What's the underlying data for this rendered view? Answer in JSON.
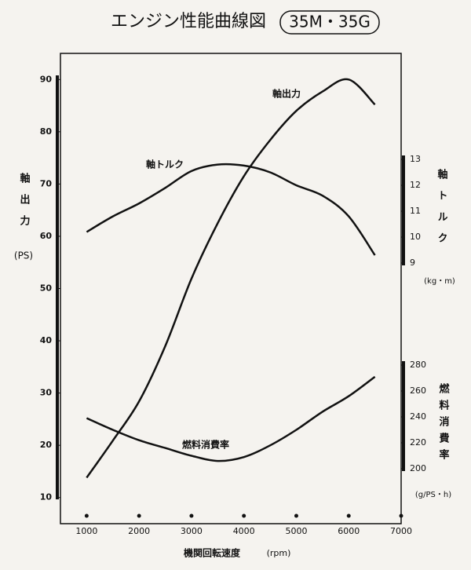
{
  "chart_data": {
    "type": "line",
    "title": "エンジン性能曲線図",
    "subtitle": "35M・35G",
    "x_label": "機関回転速度",
    "x_unit": "(rpm)",
    "y_label": "軸出力",
    "y_unit": "(PS)",
    "y2_label": "軸トルク",
    "y2_unit": "(kg・m)",
    "y3_label": "燃料消費率",
    "y3_unit": "(g/PS・h)",
    "x": [
      1000,
      1500,
      2000,
      2500,
      3000,
      3500,
      4000,
      4500,
      5000,
      5500,
      6000,
      6500
    ],
    "xlim": [
      500,
      7000
    ],
    "xticks": [
      1000,
      2000,
      3000,
      4000,
      5000,
      6000,
      7000
    ],
    "ylim": [
      5,
      95
    ],
    "yticks": [
      10,
      20,
      30,
      40,
      50,
      60,
      70,
      80,
      90
    ],
    "y2lim": [
      9,
      13
    ],
    "y2ticks": [
      9,
      10,
      11,
      12,
      13
    ],
    "y3lim": [
      200,
      280
    ],
    "y3ticks": [
      200,
      220,
      240,
      260,
      280
    ],
    "series": [
      {
        "name": "軸出力",
        "color": "#111111",
        "axis": "y",
        "values": [
          13.8,
          20.9,
          28.4,
          39,
          51.9,
          62.5,
          71.5,
          78.4,
          84,
          87.7,
          90,
          85.2
        ]
      },
      {
        "name": "軸トルク",
        "color": "#111111",
        "axis": "y2",
        "values": [
          10.2,
          10.8,
          11.3,
          11.9,
          12.55,
          12.8,
          12.76,
          12.5,
          12.0,
          11.6,
          10.8,
          9.3
        ]
      },
      {
        "name": "燃料消費率",
        "color": "#111111",
        "axis": "y3",
        "values": [
          239,
          230,
          222,
          216,
          210,
          206,
          209,
          218,
          230,
          244,
          256,
          271
        ]
      }
    ]
  }
}
